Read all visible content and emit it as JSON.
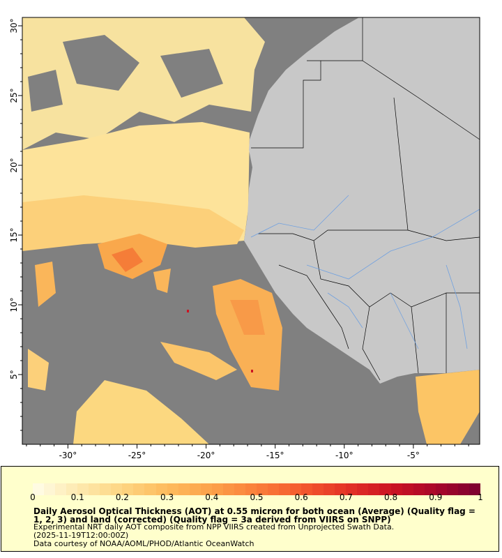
{
  "map": {
    "lat_ticks": [
      "30°",
      "25°",
      "20°",
      "15°",
      "10°",
      "5°"
    ],
    "lat_values": [
      30,
      25,
      20,
      15,
      10,
      5
    ],
    "lon_ticks": [
      "-30°",
      "-25°",
      "-20°",
      "-15°",
      "-10°",
      "-5°"
    ],
    "lon_values": [
      -30,
      -25,
      -20,
      -15,
      -10,
      -5
    ],
    "lon_range": [
      -33.3,
      -0.2
    ],
    "lat_range": [
      0,
      30.6
    ],
    "colors": {
      "ocean_nodata": "#808080",
      "land": "#c8c8c8",
      "rivers": "#6fa0e0",
      "borders": "#000000"
    }
  },
  "colorbar": {
    "labels": [
      "0",
      "0.1",
      "0.2",
      "0.3",
      "0.4",
      "0.5",
      "0.6",
      "0.7",
      "0.8",
      "0.9",
      "1"
    ],
    "range": [
      0,
      1
    ],
    "colormap_stops": [
      "#fffde9",
      "#fde9b0",
      "#fdd582",
      "#fdbb5c",
      "#fca14a",
      "#fa7f3a",
      "#f45a2e",
      "#e43326",
      "#cc1422",
      "#a8062a",
      "#7a0030"
    ]
  },
  "caption": {
    "title": "Daily Aerosol Optical Thickness (AOT) at 0.55 micron for both ocean (Average) (Quality flag = 1, 2, 3) and land (corrected) (Quality flag = 3a derived from VIIRS on SNPP)",
    "line1": "Experimental NRT daily AOT composite from NPP VIIRS created from Unprojected Swath Data.",
    "line2": "(2025-11-19T12:00:00Z)",
    "line3": "Data courtesy of NOAA/AOML/PHOD/Atlantic OceanWatch"
  }
}
